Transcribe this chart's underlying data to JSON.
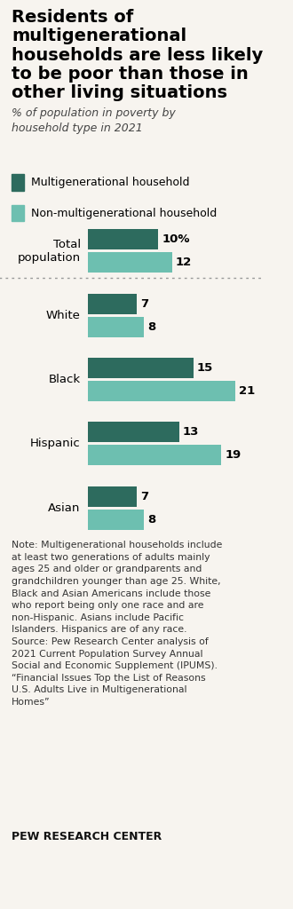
{
  "title": "Residents of\nmultigenerational\nhouseholds are less likely\nto be poor than those in\nother living situations",
  "subtitle": "% of population in poverty by\nhousehold type in 2021",
  "legend": [
    "Multigenerational household",
    "Non-multigenerational household"
  ],
  "color_dark": "#2d6b5e",
  "color_light": "#6dbfb0",
  "categories": [
    "Total\npopulation",
    "White",
    "Black",
    "Hispanic",
    "Asian"
  ],
  "multi_values": [
    10,
    7,
    15,
    13,
    7
  ],
  "non_multi_values": [
    12,
    8,
    21,
    19,
    8
  ],
  "note_text": "Note: Multigenerational households include\nat least two generations of adults mainly\nages 25 and older or grandparents and\ngrandchildren younger than age 25. White,\nBlack and Asian Americans include those\nwho report being only one race and are\nnon-Hispanic. Asians include Pacific\nIslanders. Hispanics are of any race.\nSource: Pew Research Center analysis of\n2021 Current Population Survey Annual\nSocial and Economic Supplement (IPUMS).\n“Financial Issues Top the List of Reasons\nU.S. Adults Live in Multigenerational\nHomes”",
  "source_label": "PEW RESEARCH CENTER",
  "bg_color": "#f7f4ef",
  "bar_height": 0.32,
  "bar_gap": 0.04,
  "xlim": [
    0,
    25
  ],
  "value_fontsize": 9.5,
  "cat_fontsize": 9.5,
  "note_fontsize": 7.8
}
